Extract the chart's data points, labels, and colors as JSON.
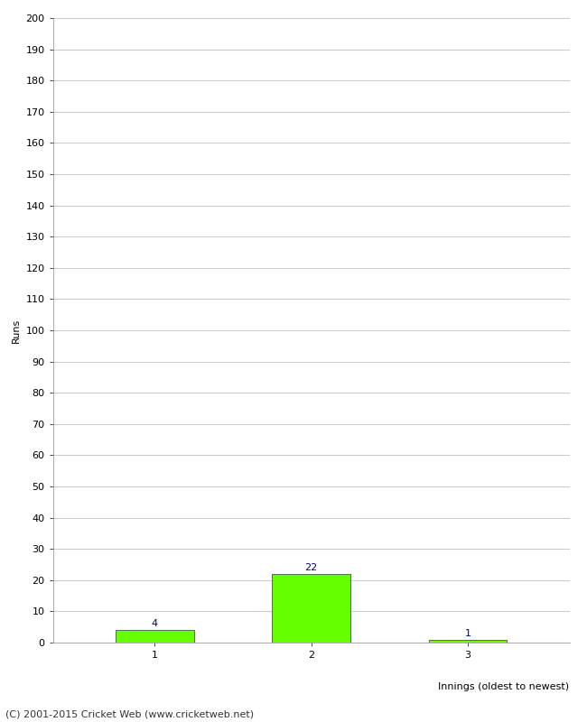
{
  "categories": [
    "1",
    "2",
    "3"
  ],
  "values": [
    4,
    22,
    1
  ],
  "bar_color": "#66ff00",
  "bar_edge_color": "#333333",
  "ylabel": "Runs",
  "xlabel": "Innings (oldest to newest)",
  "ylim": [
    0,
    200
  ],
  "yticks": [
    0,
    10,
    20,
    30,
    40,
    50,
    60,
    70,
    80,
    90,
    100,
    110,
    120,
    130,
    140,
    150,
    160,
    170,
    180,
    190,
    200
  ],
  "annotation_color": "#000080",
  "annotation_fontsize": 8,
  "footer_text": "(C) 2001-2015 Cricket Web (www.cricketweb.net)",
  "footer_fontsize": 8,
  "grid_color": "#cccccc",
  "background_color": "#ffffff",
  "bar_width": 0.5,
  "ylabel_fontsize": 8,
  "xlabel_fontsize": 8,
  "tick_fontsize": 8
}
